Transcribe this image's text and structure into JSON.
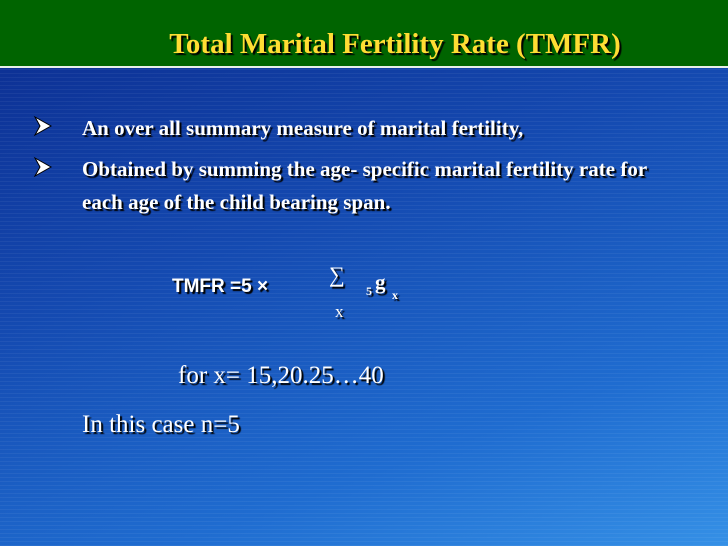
{
  "title": "Total Marital Fertility Rate (TMFR)",
  "bullets": [
    "An over all summary measure of marital fertility,",
    "Obtained by summing the age- specific marital fertility rate for each age of the child bearing span."
  ],
  "formula": {
    "lhs": "TMFR =5 ×",
    "sum": "∑",
    "sum_index": "x",
    "prefix": "5",
    "symbol": "g",
    "subscript": "x"
  },
  "range_note": "for x= 15,20.25…40",
  "case_note": "In this case n=5"
}
